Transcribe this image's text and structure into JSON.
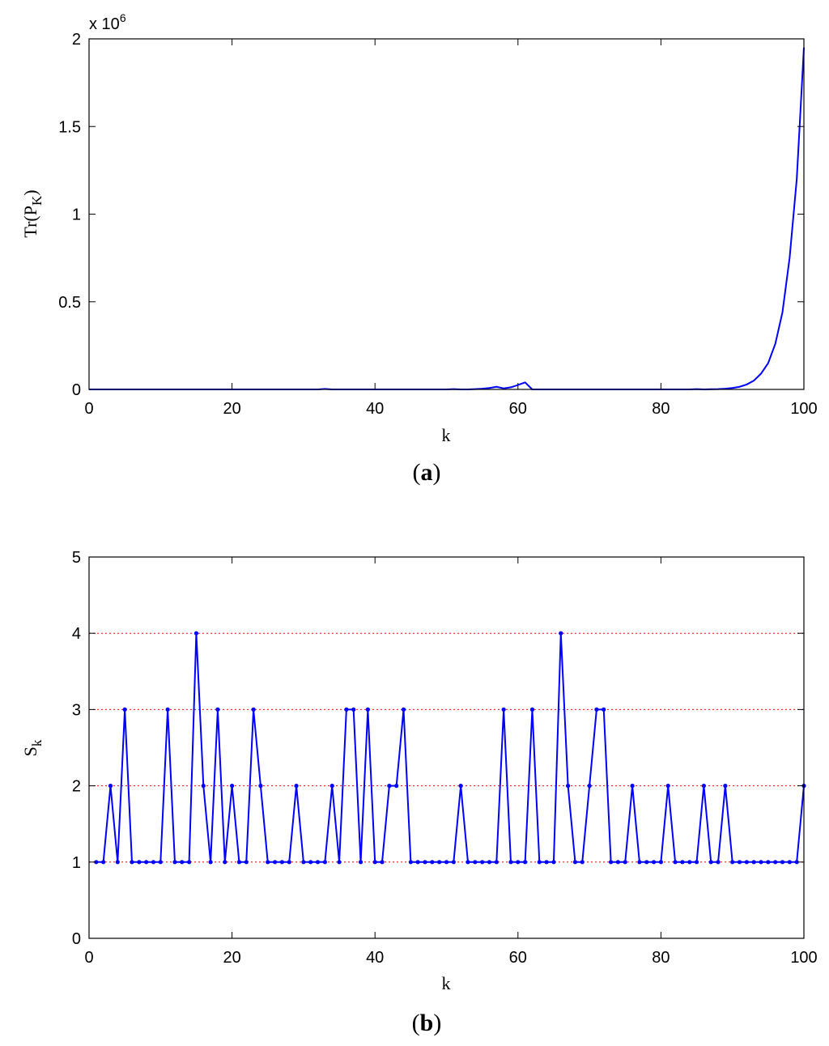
{
  "chart_data": [
    {
      "type": "line",
      "caption_letter": "a",
      "xlabel": "k",
      "ylabel_main": "Tr(P",
      "ylabel_sub": "K",
      "ylabel_close": ")",
      "multiplier_base": "x 10",
      "multiplier_exp": "6",
      "xlim": [
        0,
        100
      ],
      "ylim": [
        0,
        2
      ],
      "xticks": [
        0,
        20,
        40,
        60,
        80,
        100
      ],
      "yticks": [
        0,
        0.5,
        1,
        1.5,
        2
      ],
      "ytick_labels": [
        "0",
        "0.5",
        "1",
        "1.5",
        "2"
      ],
      "color": "#0000ff",
      "series": [
        {
          "x": [
            0,
            32,
            33,
            34,
            50,
            51,
            52,
            53,
            54,
            55,
            56,
            57,
            58,
            59,
            60,
            61,
            62,
            63,
            70,
            84,
            85,
            86,
            87,
            88,
            89,
            90,
            91,
            92,
            93,
            94,
            95,
            96,
            97,
            98,
            99,
            100
          ],
          "y": [
            0,
            0,
            0.003,
            0,
            0,
            0.002,
            0,
            0,
            0.002,
            0.004,
            0.008,
            0.015,
            0.006,
            0.012,
            0.025,
            0.04,
            0,
            0,
            0,
            0,
            0.002,
            0,
            0.001,
            0.002,
            0.004,
            0.008,
            0.015,
            0.028,
            0.05,
            0.09,
            0.15,
            0.26,
            0.44,
            0.75,
            1.2,
            1.95
          ]
        }
      ]
    },
    {
      "type": "line",
      "caption_letter": "b",
      "xlabel": "k",
      "ylabel_main": "S",
      "ylabel_sub": "k",
      "xlim": [
        0,
        100
      ],
      "ylim": [
        0,
        5
      ],
      "xticks": [
        0,
        20,
        40,
        60,
        80,
        100
      ],
      "yticks": [
        0,
        1,
        2,
        3,
        4,
        5
      ],
      "grid_y": [
        1,
        2,
        3,
        4
      ],
      "grid_color": "#ff0000",
      "color": "#0000ff",
      "marker": "dot",
      "series": [
        {
          "x": [
            1,
            2,
            3,
            4,
            5,
            6,
            7,
            8,
            9,
            10,
            11,
            12,
            13,
            14,
            15,
            16,
            17,
            18,
            19,
            20,
            21,
            22,
            23,
            24,
            25,
            26,
            27,
            28,
            29,
            30,
            31,
            32,
            33,
            34,
            35,
            36,
            37,
            38,
            39,
            40,
            41,
            42,
            43,
            44,
            45,
            46,
            47,
            48,
            49,
            50,
            51,
            52,
            53,
            54,
            55,
            56,
            57,
            58,
            59,
            60,
            61,
            62,
            63,
            64,
            65,
            66,
            67,
            68,
            69,
            70,
            71,
            72,
            73,
            74,
            75,
            76,
            77,
            78,
            79,
            80,
            81,
            82,
            83,
            84,
            85,
            86,
            87,
            88,
            89,
            90,
            91,
            92,
            93,
            94,
            95,
            96,
            97,
            98,
            99,
            100
          ],
          "y": [
            1,
            1,
            2,
            1,
            3,
            1,
            1,
            1,
            1,
            1,
            3,
            1,
            1,
            1,
            4,
            2,
            1,
            3,
            1,
            2,
            1,
            1,
            3,
            2,
            1,
            1,
            1,
            1,
            2,
            1,
            1,
            1,
            1,
            2,
            1,
            3,
            3,
            1,
            3,
            1,
            1,
            2,
            2,
            3,
            1,
            1,
            1,
            1,
            1,
            1,
            1,
            2,
            1,
            1,
            1,
            1,
            1,
            3,
            1,
            1,
            1,
            3,
            1,
            1,
            1,
            4,
            2,
            1,
            1,
            2,
            3,
            3,
            1,
            1,
            1,
            2,
            1,
            1,
            1,
            1,
            2,
            1,
            1,
            1,
            1,
            2,
            1,
            1,
            2,
            1,
            1,
            1,
            1,
            1,
            1,
            1,
            1,
            1,
            1,
            2
          ]
        }
      ]
    }
  ]
}
